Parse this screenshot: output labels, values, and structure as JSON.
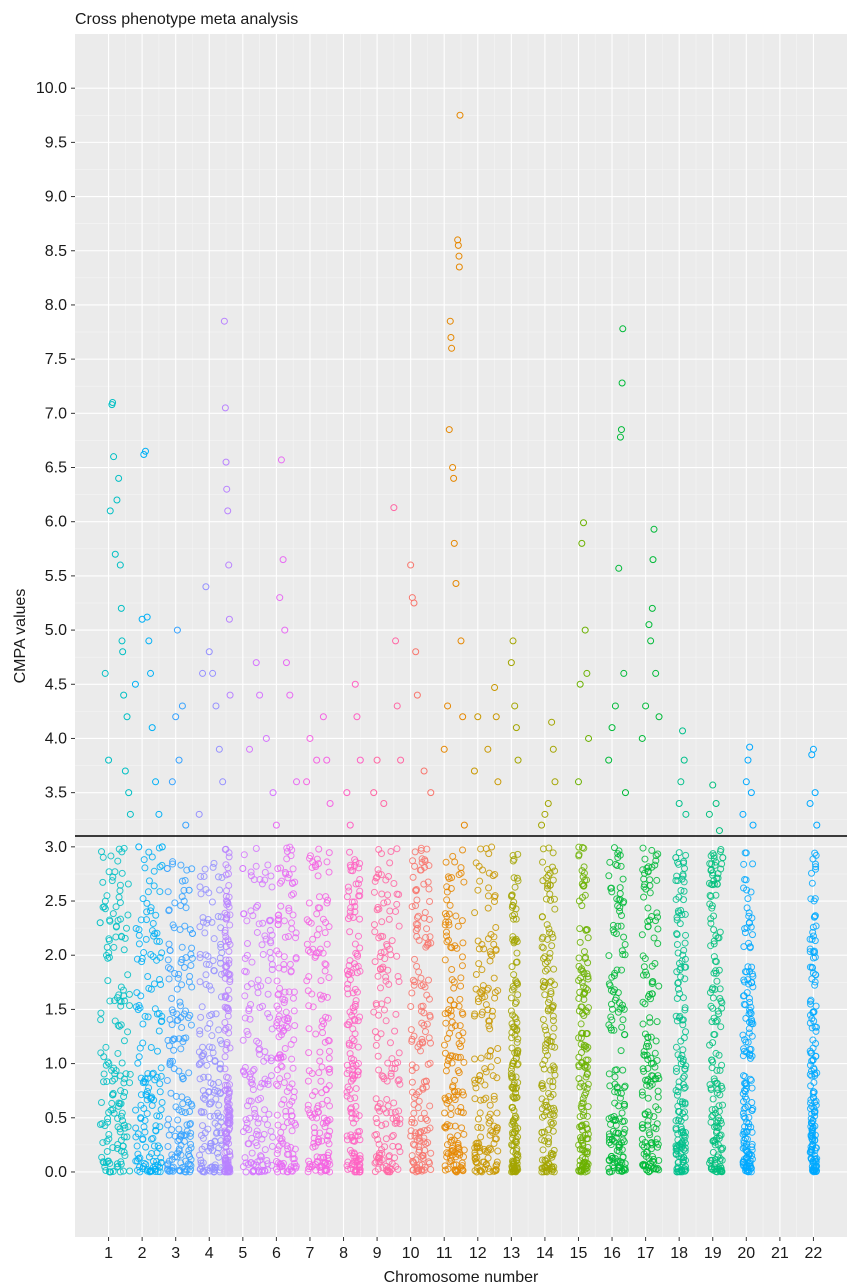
{
  "chart_data": {
    "type": "scatter",
    "title": "Cross phenotype meta analysis",
    "xlabel": "Chromosome number",
    "ylabel": "CMPA values",
    "xlim": [
      0,
      23
    ],
    "ylim": [
      -0.6,
      10.5
    ],
    "grid": true,
    "legend": "none",
    "threshold": 3.1,
    "x_ticks": [
      1,
      2,
      3,
      4,
      5,
      6,
      7,
      8,
      9,
      10,
      11,
      12,
      13,
      14,
      15,
      16,
      17,
      18,
      19,
      20,
      21,
      22
    ],
    "y_ticks": [
      0.0,
      0.5,
      1.0,
      1.5,
      2.0,
      2.5,
      3.0,
      3.5,
      4.0,
      4.5,
      5.0,
      5.5,
      6.0,
      6.5,
      7.0,
      7.5,
      8.0,
      8.5,
      9.0,
      9.5,
      10.0
    ],
    "y_tick_labels": [
      "0.0",
      "0.5",
      "1.0",
      "1.5",
      "2.0",
      "2.5",
      "3.0",
      "3.5",
      "4.0",
      "4.5",
      "5.0",
      "5.5",
      "6.0",
      "6.5",
      "7.0",
      "7.5",
      "8.0",
      "8.5",
      "9.0",
      "9.5",
      "10.0"
    ],
    "x_tick_labels": [
      "1",
      "2",
      "3",
      "4",
      "5",
      "6",
      "7",
      "8",
      "9",
      "10",
      "11",
      "12",
      "13",
      "14",
      "15",
      "16",
      "17",
      "18",
      "19",
      "20",
      "21",
      "22"
    ],
    "series": [
      {
        "chromosome": 1,
        "color": "#00BFC4",
        "points": [
          [
            0.75,
            2.3
          ],
          [
            0.9,
            4.6
          ],
          [
            1.0,
            3.8
          ],
          [
            1.05,
            6.1
          ],
          [
            1.1,
            7.08
          ],
          [
            1.12,
            7.1
          ],
          [
            1.15,
            6.6
          ],
          [
            1.2,
            5.7
          ],
          [
            1.25,
            6.2
          ],
          [
            1.3,
            6.4
          ],
          [
            1.35,
            5.6
          ],
          [
            1.38,
            5.2
          ],
          [
            1.4,
            4.9
          ],
          [
            1.42,
            4.8
          ],
          [
            1.45,
            4.4
          ],
          [
            1.5,
            3.7
          ],
          [
            1.55,
            4.2
          ],
          [
            1.6,
            3.5
          ],
          [
            1.65,
            3.3
          ]
        ]
      },
      {
        "chromosome": 2,
        "color": "#00B0F6",
        "points": [
          [
            1.8,
            4.5
          ],
          [
            1.9,
            3.0
          ],
          [
            2.0,
            5.1
          ],
          [
            2.05,
            6.62
          ],
          [
            2.1,
            6.65
          ],
          [
            2.15,
            5.12
          ],
          [
            2.2,
            4.9
          ],
          [
            2.25,
            4.6
          ],
          [
            2.3,
            4.1
          ],
          [
            2.4,
            3.6
          ],
          [
            2.5,
            3.3
          ],
          [
            2.6,
            3.0
          ]
        ]
      },
      {
        "chromosome": 3,
        "color": "#35A2FF",
        "points": [
          [
            2.75,
            2.8
          ],
          [
            2.9,
            3.6
          ],
          [
            3.0,
            4.2
          ],
          [
            3.05,
            5.0
          ],
          [
            3.1,
            3.8
          ],
          [
            3.2,
            4.3
          ],
          [
            3.3,
            3.2
          ],
          [
            3.4,
            2.6
          ],
          [
            3.5,
            2.2
          ]
        ]
      },
      {
        "chromosome": 4,
        "color": "#9590FF",
        "points": [
          [
            3.7,
            3.3
          ],
          [
            3.8,
            4.6
          ],
          [
            3.9,
            5.4
          ],
          [
            4.0,
            4.8
          ],
          [
            4.1,
            4.6
          ],
          [
            4.2,
            4.3
          ],
          [
            4.3,
            3.9
          ],
          [
            4.4,
            3.6
          ]
        ]
      },
      {
        "chromosome": 4.5,
        "color": "#B983FF",
        "points": [
          [
            4.45,
            7.85
          ],
          [
            4.48,
            7.05
          ],
          [
            4.5,
            6.55
          ],
          [
            4.52,
            6.3
          ],
          [
            4.55,
            6.1
          ],
          [
            4.58,
            5.6
          ],
          [
            4.6,
            5.1
          ],
          [
            4.62,
            4.4
          ]
        ]
      },
      {
        "chromosome": 5,
        "color": "#D575FE",
        "points": [
          [
            5.0,
            2.8
          ],
          [
            5.2,
            3.9
          ],
          [
            5.4,
            4.7
          ],
          [
            5.5,
            4.4
          ],
          [
            5.7,
            4.0
          ],
          [
            5.9,
            3.5
          ]
        ]
      },
      {
        "chromosome": 6,
        "color": "#E76BF3",
        "points": [
          [
            6.0,
            3.2
          ],
          [
            6.1,
            5.3
          ],
          [
            6.15,
            6.57
          ],
          [
            6.2,
            5.65
          ],
          [
            6.25,
            5.0
          ],
          [
            6.3,
            4.7
          ],
          [
            6.4,
            4.4
          ],
          [
            6.6,
            3.6
          ]
        ]
      },
      {
        "chromosome": 7,
        "color": "#F564E3",
        "points": [
          [
            6.9,
            3.6
          ],
          [
            7.0,
            4.0
          ],
          [
            7.2,
            3.8
          ],
          [
            7.4,
            4.2
          ],
          [
            7.5,
            3.8
          ],
          [
            7.6,
            3.4
          ]
        ]
      },
      {
        "chromosome": 8,
        "color": "#FF61C3",
        "points": [
          [
            8.1,
            3.5
          ],
          [
            8.2,
            3.2
          ],
          [
            8.35,
            4.5
          ],
          [
            8.4,
            4.2
          ],
          [
            8.5,
            3.8
          ]
        ]
      },
      {
        "chromosome": 9,
        "color": "#FF67A4",
        "points": [
          [
            8.9,
            3.5
          ],
          [
            9.0,
            3.8
          ],
          [
            9.2,
            3.4
          ],
          [
            9.5,
            6.13
          ],
          [
            9.55,
            4.9
          ],
          [
            9.6,
            4.3
          ],
          [
            9.7,
            3.8
          ]
        ]
      },
      {
        "chromosome": 10,
        "color": "#F8766D",
        "points": [
          [
            10.0,
            5.6
          ],
          [
            10.05,
            5.3
          ],
          [
            10.1,
            5.25
          ],
          [
            10.15,
            4.8
          ],
          [
            10.2,
            4.4
          ],
          [
            10.4,
            3.7
          ],
          [
            10.6,
            3.5
          ]
        ]
      },
      {
        "chromosome": 11,
        "color": "#E58700",
        "points": [
          [
            11.0,
            3.9
          ],
          [
            11.1,
            4.3
          ],
          [
            11.15,
            6.85
          ],
          [
            11.18,
            7.85
          ],
          [
            11.2,
            7.7
          ],
          [
            11.22,
            7.6
          ],
          [
            11.25,
            6.5
          ],
          [
            11.28,
            6.4
          ],
          [
            11.3,
            5.8
          ],
          [
            11.35,
            5.43
          ],
          [
            11.4,
            8.6
          ],
          [
            11.42,
            8.55
          ],
          [
            11.44,
            8.45
          ],
          [
            11.45,
            8.35
          ],
          [
            11.47,
            9.75
          ],
          [
            11.5,
            4.9
          ],
          [
            11.55,
            4.2
          ],
          [
            11.6,
            3.2
          ]
        ]
      },
      {
        "chromosome": 12,
        "color": "#C99800",
        "points": [
          [
            11.9,
            3.7
          ],
          [
            12.0,
            4.2
          ],
          [
            12.3,
            3.9
          ],
          [
            12.5,
            4.47
          ],
          [
            12.55,
            4.2
          ],
          [
            12.6,
            3.6
          ]
        ]
      },
      {
        "chromosome": 13,
        "color": "#A3A500",
        "points": [
          [
            13.0,
            4.7
          ],
          [
            13.05,
            4.9
          ],
          [
            13.1,
            4.3
          ],
          [
            13.15,
            4.1
          ],
          [
            13.2,
            3.8
          ]
        ]
      },
      {
        "chromosome": 14,
        "color": "#A3A500",
        "points": [
          [
            13.9,
            3.2
          ],
          [
            14.0,
            3.3
          ],
          [
            14.1,
            3.4
          ],
          [
            14.2,
            4.15
          ],
          [
            14.25,
            3.9
          ],
          [
            14.3,
            3.6
          ]
        ]
      },
      {
        "chromosome": 15,
        "color": "#6BB100",
        "points": [
          [
            15.0,
            3.6
          ],
          [
            15.05,
            4.5
          ],
          [
            15.1,
            5.8
          ],
          [
            15.15,
            5.99
          ],
          [
            15.2,
            5.0
          ],
          [
            15.25,
            4.6
          ],
          [
            15.3,
            4.0
          ]
        ]
      },
      {
        "chromosome": 16,
        "color": "#00BA38",
        "points": [
          [
            15.9,
            3.8
          ],
          [
            16.0,
            4.1
          ],
          [
            16.1,
            4.3
          ],
          [
            16.2,
            5.57
          ],
          [
            16.25,
            6.78
          ],
          [
            16.28,
            6.85
          ],
          [
            16.3,
            7.28
          ],
          [
            16.32,
            7.78
          ],
          [
            16.35,
            4.6
          ],
          [
            16.4,
            3.5
          ]
        ]
      },
      {
        "chromosome": 17,
        "color": "#00BA38",
        "points": [
          [
            16.9,
            4.0
          ],
          [
            17.0,
            4.3
          ],
          [
            17.1,
            5.05
          ],
          [
            17.15,
            4.9
          ],
          [
            17.2,
            5.2
          ],
          [
            17.22,
            5.65
          ],
          [
            17.25,
            5.93
          ],
          [
            17.3,
            4.6
          ],
          [
            17.4,
            4.2
          ]
        ]
      },
      {
        "chromosome": 18,
        "color": "#00C08B",
        "points": [
          [
            17.9,
            2.9
          ],
          [
            18.0,
            3.4
          ],
          [
            18.05,
            3.6
          ],
          [
            18.1,
            4.07
          ],
          [
            18.15,
            3.8
          ],
          [
            18.2,
            3.3
          ]
        ]
      },
      {
        "chromosome": 19,
        "color": "#00BF7D",
        "points": [
          [
            18.9,
            3.3
          ],
          [
            19.0,
            3.57
          ],
          [
            19.1,
            3.4
          ],
          [
            19.2,
            3.15
          ],
          [
            19.3,
            2.9
          ]
        ]
      },
      {
        "chromosome": 20,
        "color": "#00A9FF",
        "points": [
          [
            19.9,
            3.3
          ],
          [
            20.0,
            3.6
          ],
          [
            20.05,
            3.8
          ],
          [
            20.1,
            3.92
          ],
          [
            20.15,
            3.5
          ],
          [
            20.2,
            3.2
          ]
        ]
      },
      {
        "chromosome": 22,
        "color": "#00A9FF",
        "points": [
          [
            21.9,
            3.4
          ],
          [
            21.95,
            3.85
          ],
          [
            22.0,
            3.9
          ],
          [
            22.05,
            3.5
          ],
          [
            22.1,
            3.2
          ]
        ]
      }
    ]
  }
}
